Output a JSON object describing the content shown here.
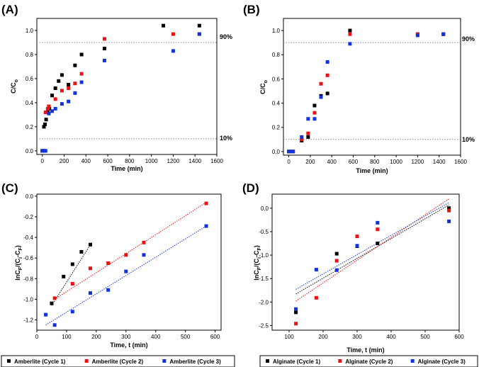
{
  "colors": {
    "cycle1": "#000000",
    "cycle2": "#ee1111",
    "cycle3": "#1133dd",
    "ref_line": "#888888"
  },
  "chart_data": [
    {
      "panel": "(A)",
      "type": "scatter",
      "xlabel": "Time (min)",
      "ylabel": "C/Co",
      "xlim": [
        -50,
        1600
      ],
      "ylim": [
        -0.03,
        1.1
      ],
      "xticks": [
        "0",
        "200",
        "400",
        "600",
        "800",
        "1000",
        "1200",
        "1400",
        "1600"
      ],
      "yticks": [
        "0.0",
        "0.2",
        "0.4",
        "0.6",
        "0.8",
        "1.0"
      ],
      "reference_lines": [
        {
          "y": 0.9,
          "label": "90%"
        },
        {
          "y": 0.1,
          "label": "10%"
        }
      ],
      "series": [
        {
          "color": "#000000",
          "points": [
            [
              0,
              0
            ],
            [
              10,
              0
            ],
            [
              20,
              0
            ],
            [
              15,
              0.2
            ],
            [
              25,
              0.22
            ],
            [
              35,
              0.26
            ],
            [
              50,
              0.33
            ],
            [
              65,
              0.35
            ],
            [
              90,
              0.46
            ],
            [
              120,
              0.52
            ],
            [
              150,
              0.58
            ],
            [
              180,
              0.63
            ],
            [
              240,
              0.55
            ],
            [
              300,
              0.71
            ],
            [
              360,
              0.8
            ],
            [
              570,
              0.85
            ],
            [
              1110,
              1.04
            ],
            [
              1440,
              1.04
            ]
          ]
        },
        {
          "color": "#ee1111",
          "points": [
            [
              0,
              0
            ],
            [
              15,
              0
            ],
            [
              30,
              0.32
            ],
            [
              50,
              0.35
            ],
            [
              60,
              0.37
            ],
            [
              120,
              0.43
            ],
            [
              180,
              0.5
            ],
            [
              240,
              0.52
            ],
            [
              300,
              0.56
            ],
            [
              360,
              0.64
            ],
            [
              570,
              0.93
            ],
            [
              1200,
              0.97
            ],
            [
              1440,
              0.97
            ]
          ]
        },
        {
          "color": "#1133dd",
          "points": [
            [
              0,
              0
            ],
            [
              20,
              0
            ],
            [
              30,
              0
            ],
            [
              60,
              0.31
            ],
            [
              90,
              0.33
            ],
            [
              120,
              0.35
            ],
            [
              180,
              0.39
            ],
            [
              240,
              0.41
            ],
            [
              300,
              0.48
            ],
            [
              360,
              0.57
            ],
            [
              570,
              0.75
            ],
            [
              1200,
              0.83
            ],
            [
              1440,
              0.97
            ]
          ]
        }
      ]
    },
    {
      "panel": "(B)",
      "type": "scatter",
      "xlabel": "Time (min)",
      "ylabel": "C/Co",
      "xlim": [
        -50,
        1600
      ],
      "ylim": [
        -0.03,
        1.1
      ],
      "xticks": [
        "0",
        "200",
        "400",
        "600",
        "800",
        "1000",
        "1200",
        "1400",
        "1600"
      ],
      "yticks": [
        "0.0",
        "0.2",
        "0.4",
        "0.6",
        "0.8",
        "1.0"
      ],
      "reference_lines": [
        {
          "y": 0.9,
          "label": "90%"
        },
        {
          "y": 0.1,
          "label": "10%"
        }
      ],
      "series": [
        {
          "color": "#000000",
          "points": [
            [
              0,
              0
            ],
            [
              20,
              0
            ],
            [
              40,
              0
            ],
            [
              120,
              0.09
            ],
            [
              180,
              0.12
            ],
            [
              240,
              0.38
            ],
            [
              300,
              0.46
            ],
            [
              360,
              0.48
            ],
            [
              570,
              1.0
            ],
            [
              1200,
              0.97
            ],
            [
              1440,
              0.97
            ]
          ]
        },
        {
          "color": "#ee1111",
          "points": [
            [
              0,
              0
            ],
            [
              20,
              0
            ],
            [
              40,
              0
            ],
            [
              120,
              0.1
            ],
            [
              180,
              0.15
            ],
            [
              240,
              0.32
            ],
            [
              300,
              0.56
            ],
            [
              360,
              0.63
            ],
            [
              570,
              0.97
            ],
            [
              1200,
              0.97
            ],
            [
              1440,
              0.97
            ]
          ]
        },
        {
          "color": "#1133dd",
          "points": [
            [
              0,
              0
            ],
            [
              20,
              0
            ],
            [
              40,
              0
            ],
            [
              120,
              0.12
            ],
            [
              180,
              0.27
            ],
            [
              240,
              0.27
            ],
            [
              300,
              0.45
            ],
            [
              360,
              0.74
            ],
            [
              570,
              0.89
            ],
            [
              1200,
              0.96
            ],
            [
              1440,
              0.97
            ]
          ]
        }
      ]
    },
    {
      "panel": "(C)",
      "type": "scatter",
      "xlabel": "Time, t (min)",
      "ylabel": "lnCF/(Ci-CF)",
      "xlim": [
        0,
        620
      ],
      "ylim": [
        -1.3,
        0.02
      ],
      "xticks": [
        "0",
        "100",
        "200",
        "300",
        "400",
        "500",
        "600"
      ],
      "yticks": [
        "0.0",
        "-0.2",
        "-0.4",
        "-0.6",
        "-0.8",
        "-1.0",
        "-1.2"
      ],
      "legend_position": "bottom",
      "series": [
        {
          "name": "Amberlite (Cycle 1)",
          "color": "#000000",
          "points": [
            [
              50,
              -1.04
            ],
            [
              90,
              -0.78
            ],
            [
              120,
              -0.66
            ],
            [
              150,
              -0.54
            ],
            [
              180,
              -0.47
            ]
          ],
          "fit": [
            [
              50,
              -1.06
            ],
            [
              185,
              -0.45
            ]
          ]
        },
        {
          "name": "Amberlite (Cycle 2)",
          "color": "#ee1111",
          "points": [
            [
              60,
              -0.99
            ],
            [
              120,
              -0.85
            ],
            [
              180,
              -0.7
            ],
            [
              240,
              -0.65
            ],
            [
              300,
              -0.57
            ],
            [
              360,
              -0.45
            ],
            [
              570,
              -0.07
            ]
          ],
          "fit": [
            [
              60,
              -1.0
            ],
            [
              570,
              -0.06
            ]
          ]
        },
        {
          "name": "Amberlite (Cycle 3)",
          "color": "#1133dd",
          "points": [
            [
              30,
              -1.15
            ],
            [
              60,
              -1.25
            ],
            [
              120,
              -1.12
            ],
            [
              180,
              -0.94
            ],
            [
              240,
              -0.91
            ],
            [
              300,
              -0.73
            ],
            [
              360,
              -0.57
            ],
            [
              570,
              -0.29
            ]
          ],
          "fit": [
            [
              30,
              -1.25
            ],
            [
              570,
              -0.29
            ]
          ]
        }
      ]
    },
    {
      "panel": "(D)",
      "type": "scatter",
      "xlabel": "Time, t (min)",
      "ylabel": "lnCF/(Ci-CF)",
      "xlim": [
        50,
        600
      ],
      "ylim": [
        -2.6,
        0.3
      ],
      "xticks": [
        "100",
        "200",
        "300",
        "400",
        "500",
        "600"
      ],
      "yticks": [
        "0.0",
        "-0.5",
        "-1.0",
        "-1.5",
        "-2.0",
        "-2.5"
      ],
      "legend_position": "bottom",
      "series": [
        {
          "name": "Alginate (Cycle 1)",
          "color": "#000000",
          "points": [
            [
              120,
              -2.22
            ],
            [
              240,
              -0.97
            ],
            [
              300,
              -0.81
            ],
            [
              360,
              -0.75
            ],
            [
              570,
              0.0
            ]
          ],
          "fit": [
            [
              120,
              -1.83
            ],
            [
              570,
              0.07
            ]
          ]
        },
        {
          "name": "Alginate (Cycle 2)",
          "color": "#ee1111",
          "points": [
            [
              120,
              -2.46
            ],
            [
              180,
              -1.91
            ],
            [
              240,
              -1.12
            ],
            [
              300,
              -0.6
            ],
            [
              360,
              -0.45
            ],
            [
              570,
              -0.05
            ]
          ],
          "fit": [
            [
              120,
              -1.98
            ],
            [
              570,
              0.2
            ]
          ]
        },
        {
          "name": "Alginate (Cycle 3)",
          "color": "#1133dd",
          "points": [
            [
              120,
              -2.15
            ],
            [
              180,
              -1.31
            ],
            [
              240,
              -1.32
            ],
            [
              300,
              -0.8
            ],
            [
              360,
              -0.31
            ],
            [
              570,
              -0.28
            ]
          ],
          "fit": [
            [
              120,
              -1.73
            ],
            [
              570,
              0.12
            ]
          ]
        }
      ]
    }
  ]
}
